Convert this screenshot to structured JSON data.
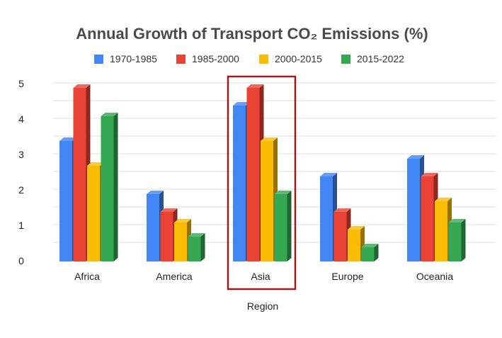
{
  "chart_data": {
    "type": "bar",
    "style": "3d-column",
    "title": "Annual Growth of Transport CO₂ Emissions (%)",
    "xlabel": "Region",
    "ylabel": "",
    "ylim": [
      0,
      5
    ],
    "yticks": [
      "0",
      "1",
      "2",
      "3",
      "4",
      "5"
    ],
    "grid": true,
    "legend": "top",
    "categories": [
      "Africa",
      "America",
      "Asia",
      "Europe",
      "Oceania"
    ],
    "series": [
      {
        "name": "1970-1985",
        "color": "#4285f4",
        "values": [
          3.5,
          2.0,
          4.5,
          2.5,
          3.0
        ]
      },
      {
        "name": "1985-2000",
        "color": "#ea4335",
        "values": [
          5.0,
          1.5,
          5.0,
          1.5,
          2.5
        ]
      },
      {
        "name": "2000-2015",
        "color": "#fbbc04",
        "values": [
          2.8,
          1.2,
          3.5,
          1.0,
          1.8
        ]
      },
      {
        "name": "2015-2022",
        "color": "#34a853",
        "values": [
          4.2,
          0.8,
          2.0,
          0.5,
          1.2
        ]
      }
    ],
    "highlight": {
      "category": "Asia",
      "color": "#9e1b1b"
    }
  }
}
